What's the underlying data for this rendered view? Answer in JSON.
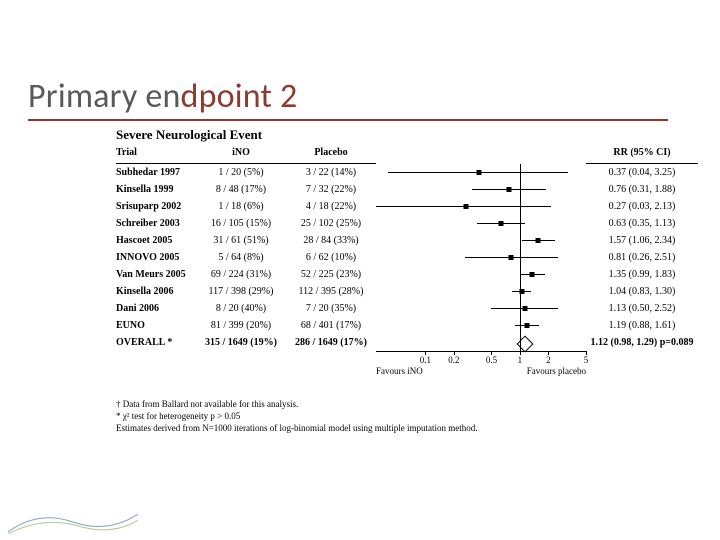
{
  "title": {
    "part1": "Primary en",
    "part2": "dpoint 2"
  },
  "subtitle": "Severe Neurological Event",
  "headers": {
    "trial": "Trial",
    "ino": "iNO",
    "placebo": "Placebo",
    "rr": "RR (95% CI)"
  },
  "axis": {
    "ticks": [
      0.1,
      0.2,
      0.5,
      1,
      2,
      5
    ],
    "min": 0.03,
    "max": 5,
    "left_label": "Favours iNO",
    "right_label": "Favours placebo"
  },
  "rows": [
    {
      "trial": "Subhedar 1997",
      "ino": "1 / 20 (5%)",
      "plac": "3 / 22 (14%)",
      "rr": "0.37 (0.04, 3.25)",
      "pt": 0.37,
      "lo": 0.04,
      "hi": 3.25
    },
    {
      "trial": "Kinsella 1999",
      "ino": "8 / 48 (17%)",
      "plac": "7 / 32 (22%)",
      "rr": "0.76 (0.31, 1.88)",
      "pt": 0.76,
      "lo": 0.31,
      "hi": 1.88
    },
    {
      "trial": "Srisuparp 2002",
      "ino": "1 / 18 (6%)",
      "plac": "4 / 18 (22%)",
      "rr": "0.27 (0.03, 2.13)",
      "pt": 0.27,
      "lo": 0.03,
      "hi": 2.13
    },
    {
      "trial": "Schreiber 2003",
      "ino": "16 / 105 (15%)",
      "plac": "25 / 102 (25%)",
      "rr": "0.63 (0.35, 1.13)",
      "pt": 0.63,
      "lo": 0.35,
      "hi": 1.13
    },
    {
      "trial": "Hascoet 2005",
      "ino": "31 / 61 (51%)",
      "plac": "28 / 84 (33%)",
      "rr": "1.57 (1.06, 2.34)",
      "pt": 1.57,
      "lo": 1.06,
      "hi": 2.34
    },
    {
      "trial": "INNOVO 2005",
      "ino": "5 / 64 (8%)",
      "plac": "6 / 62 (10%)",
      "rr": "0.81 (0.26, 2.51)",
      "pt": 0.81,
      "lo": 0.26,
      "hi": 2.51
    },
    {
      "trial": "Van Meurs 2005",
      "ino": "69 / 224 (31%)",
      "plac": "52 / 225 (23%)",
      "rr": "1.35 (0.99, 1.83)",
      "pt": 1.35,
      "lo": 0.99,
      "hi": 1.83
    },
    {
      "trial": "Kinsella 2006",
      "ino": "117 / 398 (29%)",
      "plac": "112 / 395 (28%)",
      "rr": "1.04 (0.83, 1.30)",
      "pt": 1.04,
      "lo": 0.83,
      "hi": 1.3
    },
    {
      "trial": "Dani 2006",
      "ino": "8 / 20 (40%)",
      "plac": "7 / 20 (35%)",
      "rr": "1.13 (0.50, 2.52)",
      "pt": 1.13,
      "lo": 0.5,
      "hi": 2.52
    },
    {
      "trial": "EUNO",
      "ino": "81 / 399 (20%)",
      "plac": "68 / 401 (17%)",
      "rr": "1.19 (0.88, 1.61)",
      "pt": 1.19,
      "lo": 0.88,
      "hi": 1.61
    }
  ],
  "overall": {
    "trial": "OVERALL *",
    "ino": "315 / 1649 (19%)",
    "plac": "286 / 1649 (17%)",
    "rr": "1.12 (0.98, 1.29) p=0.089",
    "pt": 1.12,
    "lo": 0.98,
    "hi": 1.29
  },
  "footnotes": [
    "† Data from Ballard not available for this analysis.",
    "* χ² test for heterogeneity p > 0.05",
    "Estimates derived from N=1000 iterations of log-binomial model using multiple imputation method."
  ],
  "colors": {
    "accent": "#8e3a2f",
    "title_dark": "#595959",
    "fg": "#000000",
    "bg": "#ffffff",
    "deco1": "#7aa6c2",
    "deco2": "#b8c88a"
  }
}
